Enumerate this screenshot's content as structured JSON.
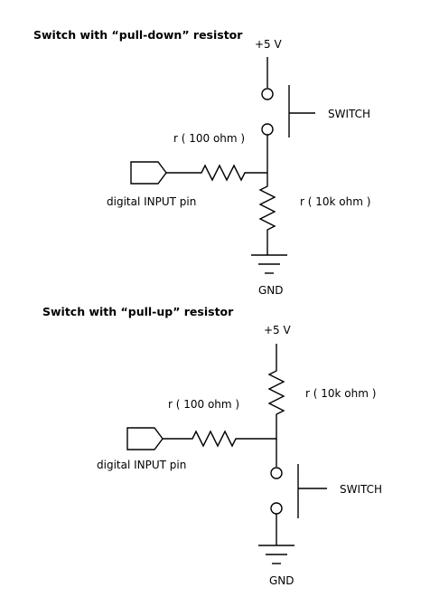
{
  "pull_down": {
    "title": "Switch with “pull-down” resistor",
    "supply": "+5 V",
    "switch": "SWITCH",
    "series_resistor": "r ( 100 ohm )",
    "pull_resistor": "r ( 10k ohm )",
    "input": "digital INPUT pin",
    "gnd": "GND"
  },
  "pull_up": {
    "title": "Switch with “pull-up” resistor",
    "supply": "+5 V",
    "switch": "SWITCH",
    "series_resistor": "r ( 100 ohm )",
    "pull_resistor": "r ( 10k ohm )",
    "input": "digital INPUT pin",
    "gnd": "GND"
  }
}
